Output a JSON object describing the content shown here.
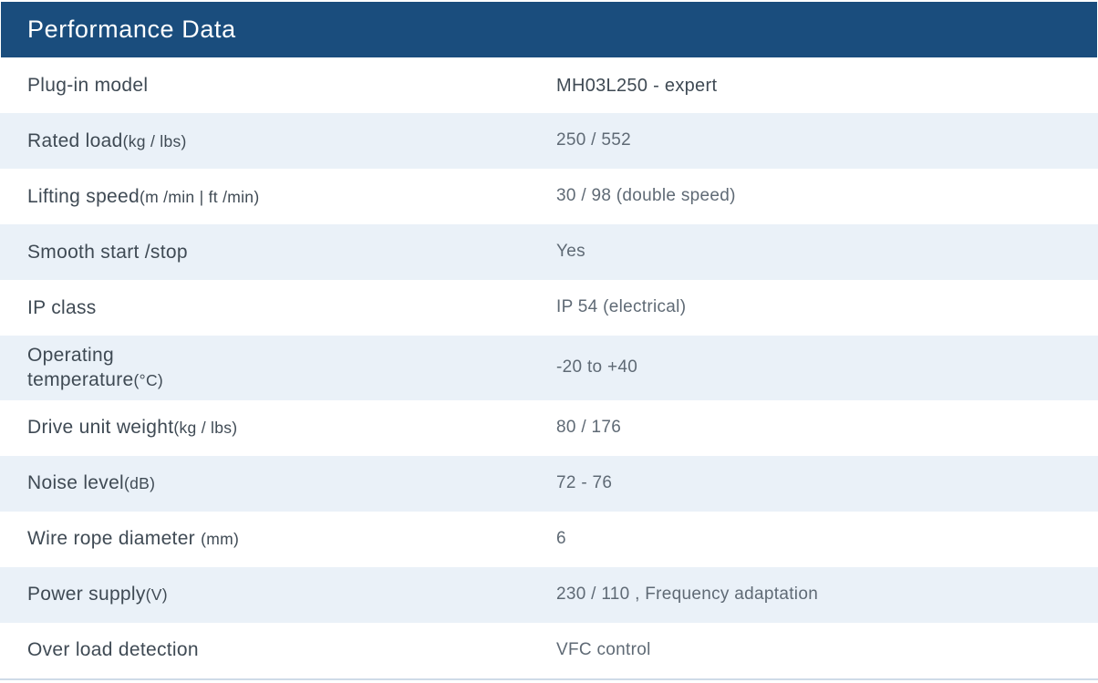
{
  "header": {
    "title": "Performance Data"
  },
  "table": {
    "rows": [
      {
        "label": "Plug-in model",
        "unit": "",
        "value": "MH03L250 - expert"
      },
      {
        "label": "Rated load",
        "unit": "(kg / lbs)",
        "value": "250 / 552"
      },
      {
        "label": "Lifting speed",
        "unit": "(m /min | ft /min)",
        "value": "30 / 98 (double speed)"
      },
      {
        "label": "Smooth start /stop",
        "unit": "",
        "value": "Yes"
      },
      {
        "label": "IP class",
        "unit": "",
        "value": "IP 54 (electrical)"
      },
      {
        "label": "Operating\ntemperature",
        "unit": "(°C)",
        "value": "-20 to +40"
      },
      {
        "label": "Drive unit weight",
        "unit": "(kg / lbs)",
        "value": "80 / 176"
      },
      {
        "label": "Noise level",
        "unit": "(dB)",
        "value": "72 - 76"
      },
      {
        "label": "Wire rope diameter ",
        "unit": "(mm)",
        "value": "6"
      },
      {
        "label": "Power supply",
        "unit": "(V)",
        "value": "230 / 110 , Frequency adaptation"
      },
      {
        "label": "Over load detection",
        "unit": "",
        "value": "VFC control"
      }
    ]
  },
  "colors": {
    "header_bg": "#1a4d7d",
    "header_text": "#ffffff",
    "row_alt_bg": "#eaf1f8",
    "label_text": "#3f4a54",
    "value_text": "#5f6a75",
    "bottom_border": "#cfdbe8"
  }
}
